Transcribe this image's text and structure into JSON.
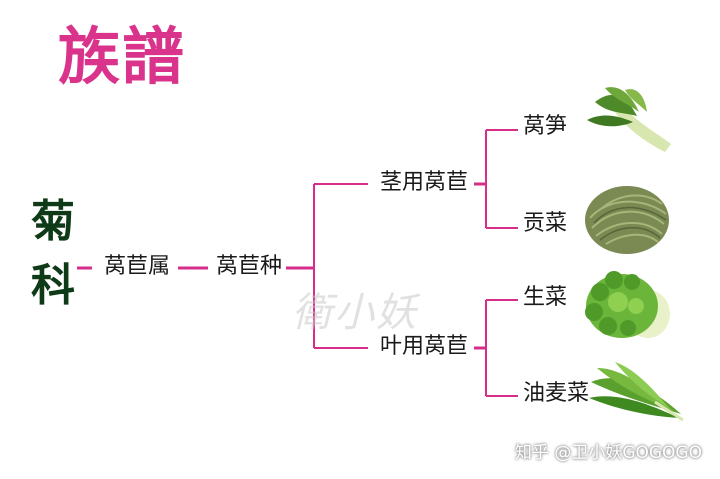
{
  "title": "族譜",
  "family_label": [
    "菊",
    "科"
  ],
  "genus": "莴苣属",
  "species": "莴苣种",
  "varieties": [
    "茎用莴苣",
    "叶用莴苣"
  ],
  "types": [
    "莴笋",
    "贡菜",
    "生菜",
    "油麦菜"
  ],
  "watermark": "衛小妖",
  "credit": "知乎 @卫小妖GOGOGO",
  "colors": {
    "title": "#d9338c",
    "connector": "#d62e8a",
    "family": "#0f3a17"
  },
  "icons": [
    "lettuce-stem-image",
    "gongcai-image",
    "lettuce-leaf-image",
    "youmaicai-image"
  ]
}
